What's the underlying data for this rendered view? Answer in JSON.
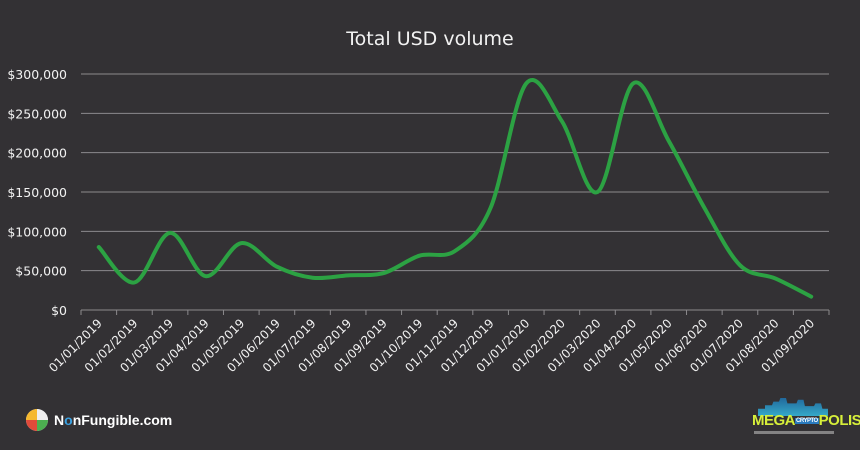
{
  "title": "Total USD volume",
  "colors": {
    "background": "#333134",
    "line": "#2ca243",
    "grid": "#8c8a8d",
    "text": "#f2f2f2"
  },
  "branding": {
    "left_logo_text_prefix": "N",
    "left_logo_text_o": "o",
    "left_logo_text_suffix": "nFungible.com",
    "right_logo_main": "MEGA",
    "right_logo_small": "CRYPTO",
    "right_logo_end": "POLIS"
  },
  "chart_data": {
    "type": "line",
    "title": "Total USD volume",
    "xlabel": "",
    "ylabel": "",
    "ylim": [
      0,
      300000
    ],
    "yticks": [
      0,
      50000,
      100000,
      150000,
      200000,
      250000,
      300000
    ],
    "ytick_labels": [
      "$0",
      "$50,000",
      "$100,000",
      "$150,000",
      "$200,000",
      "$250,000",
      "$300,000"
    ],
    "grid": true,
    "legend": "none",
    "smooth": true,
    "categories": [
      "01/01/2019",
      "01/02/2019",
      "01/03/2019",
      "01/04/2019",
      "01/05/2019",
      "01/06/2019",
      "01/07/2019",
      "01/08/2019",
      "01/09/2019",
      "01/10/2019",
      "01/11/2019",
      "01/12/2019",
      "01/01/2020",
      "01/02/2020",
      "01/03/2020",
      "01/04/2020",
      "01/05/2020",
      "01/06/2020",
      "01/07/2020",
      "01/08/2020",
      "01/09/2020"
    ],
    "series": [
      {
        "name": "Total USD volume",
        "values": [
          80000,
          35000,
          98000,
          43000,
          85000,
          55000,
          41000,
          44000,
          47000,
          69000,
          75000,
          130000,
          288000,
          240000,
          150000,
          288000,
          215000,
          130000,
          57000,
          40000,
          17000
        ]
      }
    ]
  }
}
